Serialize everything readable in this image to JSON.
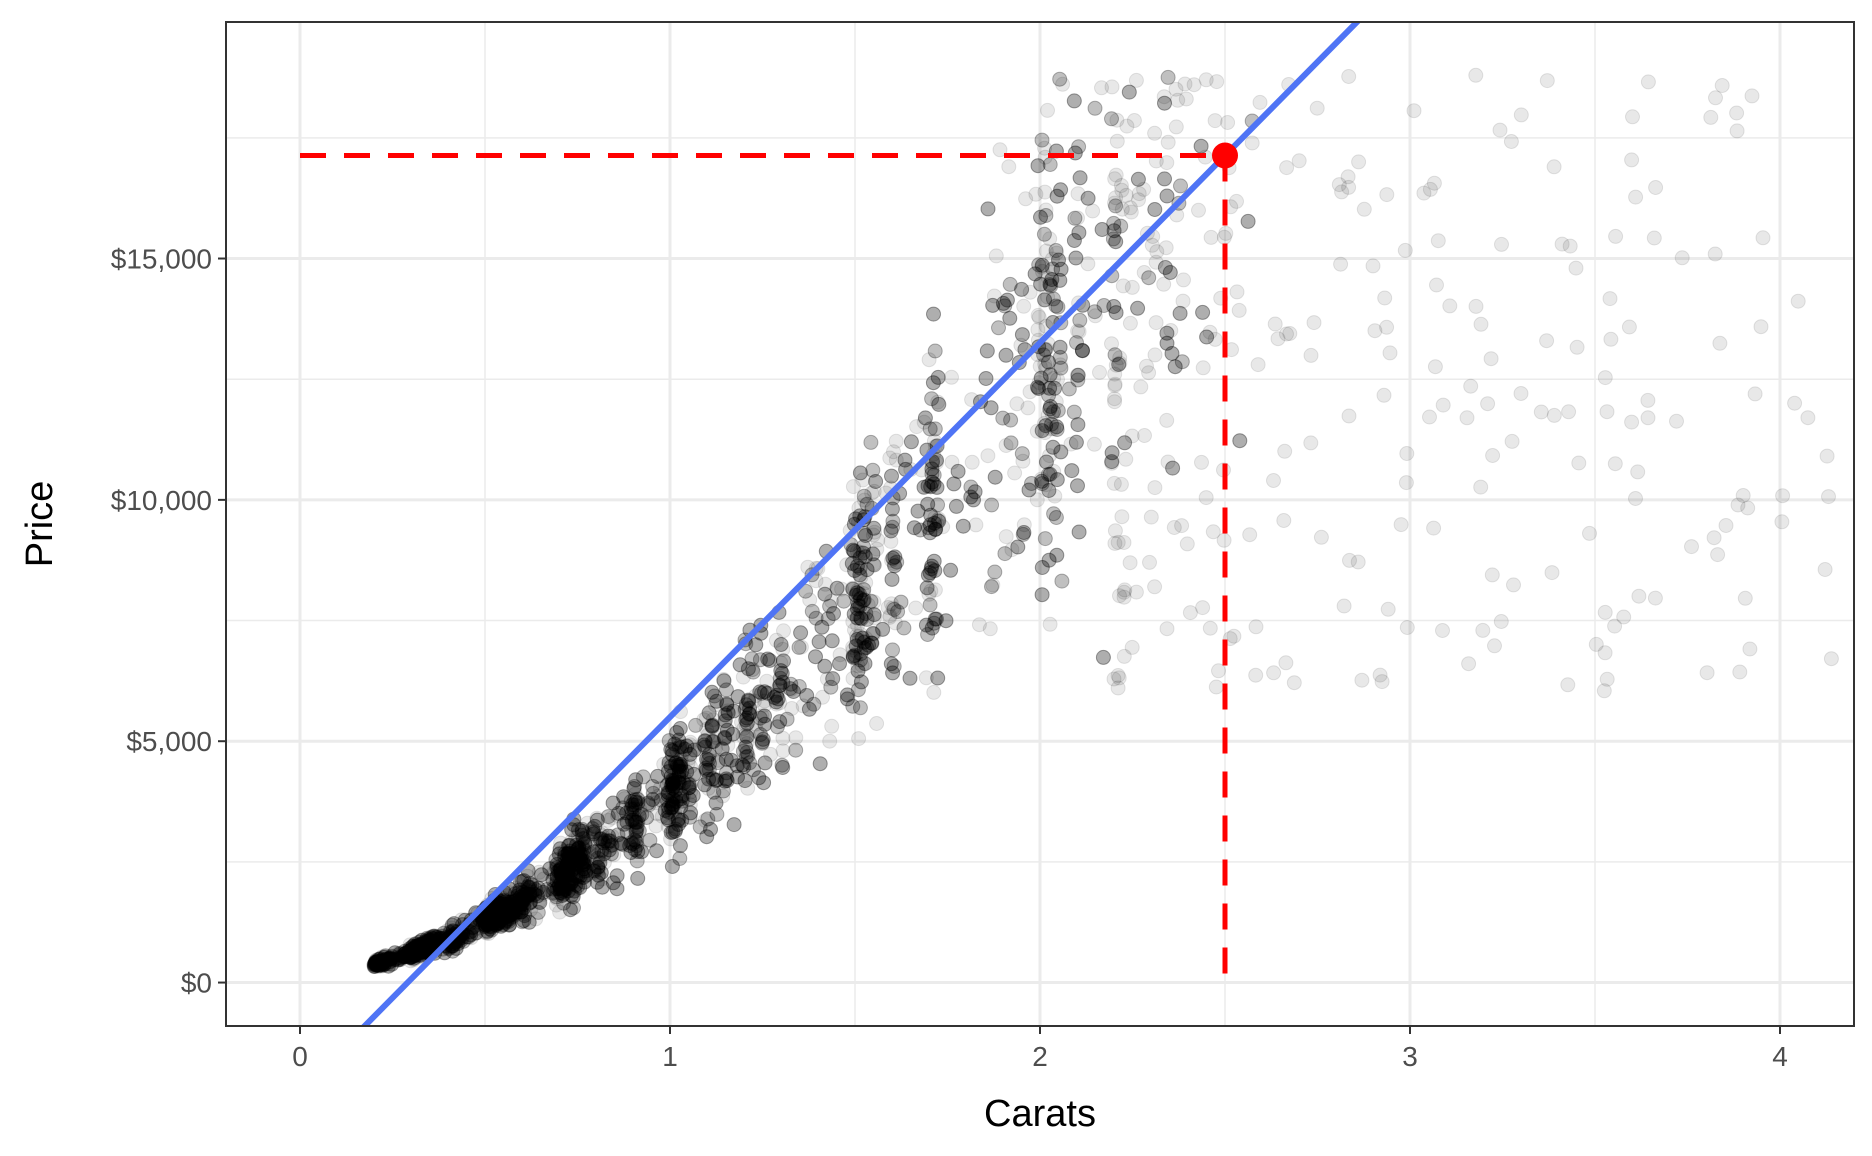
{
  "chart_data": {
    "type": "scatter",
    "title": "",
    "xlabel": "Carats",
    "ylabel": "Price",
    "xlim": [
      -0.2,
      4.2
    ],
    "ylim": [
      -900,
      19900
    ],
    "x_ticks": [
      0,
      1,
      2,
      3,
      4
    ],
    "x_tick_labels": [
      "0",
      "1",
      "2",
      "3",
      "4"
    ],
    "y_ticks": [
      0,
      5000,
      10000,
      15000
    ],
    "y_tick_labels": [
      "$0",
      "$5,000",
      "$10,000",
      "$15,000"
    ],
    "grid": true,
    "legend": "none",
    "colors": {
      "points": "#000000",
      "fit_line": "#4f74f5",
      "highlight": "#ff0000",
      "grid": "#ebebeb",
      "panel_border": "#333333"
    },
    "scatter_points_note_clusters": [
      {
        "carat_range": [
          0.2,
          0.5
        ],
        "price_range": [
          300,
          2500
        ],
        "density": "very high"
      },
      {
        "carat_range": [
          0.5,
          0.9
        ],
        "price_range": [
          900,
          4500
        ],
        "density": "very high"
      },
      {
        "carat_range": [
          0.9,
          1.3
        ],
        "price_range": [
          2000,
          12000
        ],
        "density": "high"
      },
      {
        "carat_range": [
          1.3,
          1.8
        ],
        "price_range": [
          3000,
          18800
        ],
        "density": "high"
      },
      {
        "carat_range": [
          1.9,
          2.5
        ],
        "price_range": [
          5000,
          18800
        ],
        "density": "medium"
      },
      {
        "carat_range": [
          2.5,
          4.2
        ],
        "price_range": [
          6000,
          18800
        ],
        "density": "sparse"
      }
    ],
    "fit_line": {
      "intercept": -2256,
      "slope": 7756
    },
    "highlight_point": {
      "x": 2.5,
      "y": 17134
    }
  }
}
